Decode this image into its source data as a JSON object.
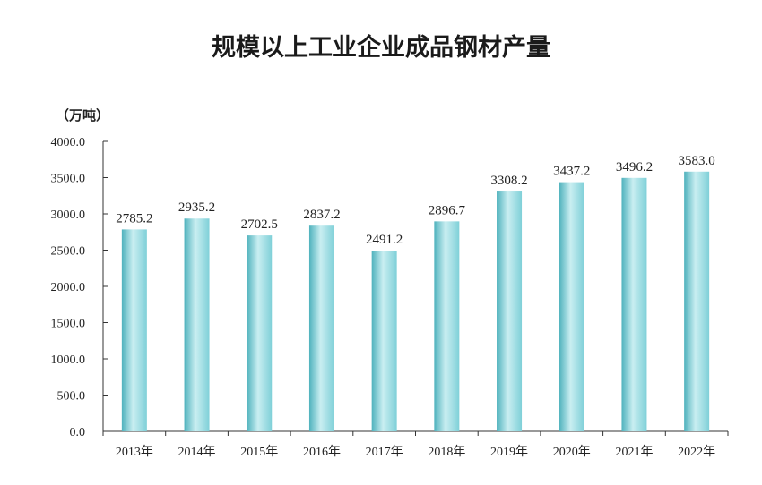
{
  "chart_data": {
    "type": "bar",
    "title": "规模以上工业企业成品钢材产量",
    "ylabel": "（万吨）",
    "categories": [
      "2013年",
      "2014年",
      "2015年",
      "2016年",
      "2017年",
      "2018年",
      "2019年",
      "2020年",
      "2021年",
      "2022年"
    ],
    "values": [
      2785.2,
      2935.2,
      2702.5,
      2837.2,
      2491.2,
      2896.7,
      3308.2,
      3437.2,
      3496.2,
      3583.0
    ],
    "data_labels": [
      "2785.2",
      "2935.2",
      "2702.5",
      "2837.2",
      "2491.2",
      "2896.7",
      "3308.2",
      "3437.2",
      "3496.2",
      "3583.0"
    ],
    "yticks": [
      "0.0",
      "500.0",
      "1000.0",
      "1500.0",
      "2000.0",
      "2500.0",
      "3000.0",
      "3500.0",
      "4000.0"
    ],
    "ylim": [
      0,
      4000
    ],
    "grid": false,
    "colors": {
      "bar_light": "#c9eef1",
      "bar_mid": "#7fd0d8",
      "bar_dark": "#4fb2bd"
    }
  }
}
